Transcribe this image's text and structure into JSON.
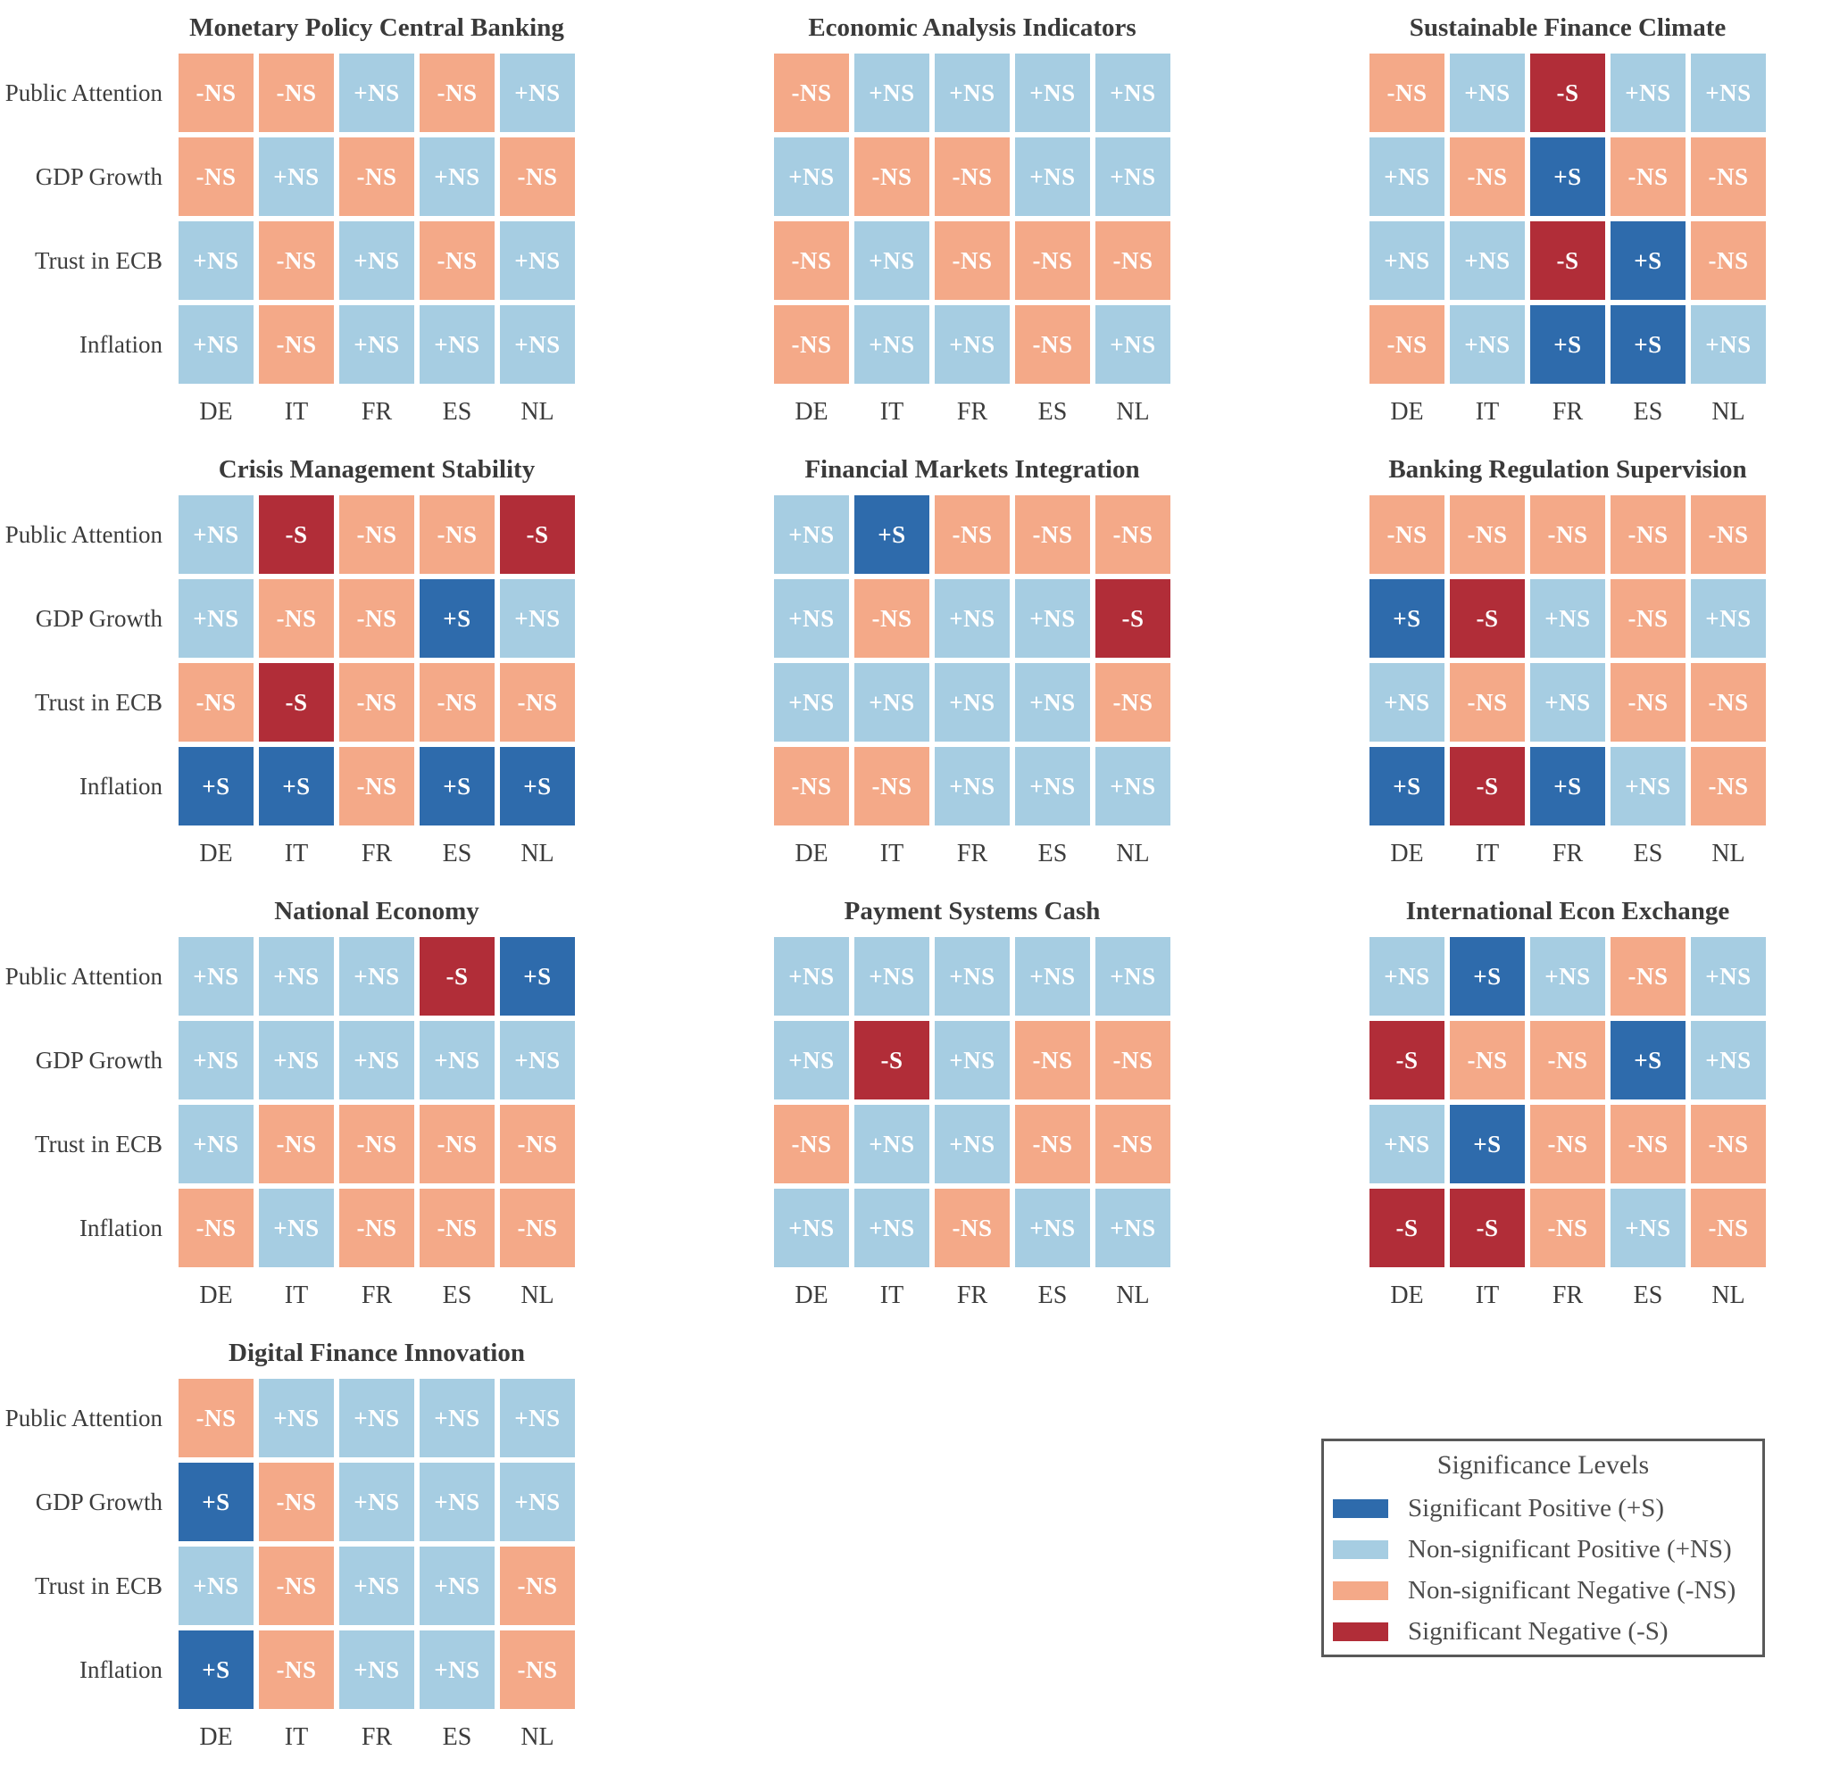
{
  "colors": {
    "sig_pos": "#2E6BAC",
    "nonsig_pos": "#A6CDE2",
    "nonsig_neg": "#F4A988",
    "sig_neg": "#B12D38",
    "label_text": "#3C3C3C",
    "cell_text": "#FFFFFF",
    "legend_border": "#595959"
  },
  "legend": {
    "title": "Significance Levels",
    "items": [
      {
        "label": "Significant Positive (+S)",
        "code": "+S",
        "color_key": "sig_pos"
      },
      {
        "label": "Non-significant Positive (+NS)",
        "code": "+NS",
        "color_key": "nonsig_pos"
      },
      {
        "label": "Non-significant Negative (-NS)",
        "code": "-NS",
        "color_key": "nonsig_neg"
      },
      {
        "label": "Significant Negative (-S)",
        "code": "-S",
        "color_key": "sig_neg"
      }
    ]
  },
  "chart_data": {
    "type": "heatmap",
    "rows": [
      "Public Attention",
      "GDP Growth",
      "Trust in ECB",
      "Inflation"
    ],
    "columns": [
      "DE",
      "IT",
      "FR",
      "ES",
      "NL"
    ],
    "value_meaning": {
      "+S": "Significant Positive",
      "+NS": "Non-significant Positive",
      "-NS": "Non-significant Negative",
      "-S": "Significant Negative"
    },
    "panels": [
      {
        "title": "Monetary Policy Central Banking",
        "values": [
          [
            "-NS",
            "-NS",
            "+NS",
            "-NS",
            "+NS"
          ],
          [
            "-NS",
            "+NS",
            "-NS",
            "+NS",
            "-NS"
          ],
          [
            "+NS",
            "-NS",
            "+NS",
            "-NS",
            "+NS"
          ],
          [
            "+NS",
            "-NS",
            "+NS",
            "+NS",
            "+NS"
          ]
        ]
      },
      {
        "title": "Economic Analysis Indicators",
        "values": [
          [
            "-NS",
            "+NS",
            "+NS",
            "+NS",
            "+NS"
          ],
          [
            "+NS",
            "-NS",
            "-NS",
            "+NS",
            "+NS"
          ],
          [
            "-NS",
            "+NS",
            "-NS",
            "-NS",
            "-NS"
          ],
          [
            "-NS",
            "+NS",
            "+NS",
            "-NS",
            "+NS"
          ]
        ]
      },
      {
        "title": "Sustainable Finance Climate",
        "values": [
          [
            "-NS",
            "+NS",
            "-S",
            "+NS",
            "+NS"
          ],
          [
            "+NS",
            "-NS",
            "+S",
            "-NS",
            "-NS"
          ],
          [
            "+NS",
            "+NS",
            "-S",
            "+S",
            "-NS"
          ],
          [
            "-NS",
            "+NS",
            "+S",
            "+S",
            "+NS"
          ]
        ]
      },
      {
        "title": "Crisis Management Stability",
        "values": [
          [
            "+NS",
            "-S",
            "-NS",
            "-NS",
            "-S"
          ],
          [
            "+NS",
            "-NS",
            "-NS",
            "+S",
            "+NS"
          ],
          [
            "-NS",
            "-S",
            "-NS",
            "-NS",
            "-NS"
          ],
          [
            "+S",
            "+S",
            "-NS",
            "+S",
            "+S"
          ]
        ]
      },
      {
        "title": "Financial Markets Integration",
        "values": [
          [
            "+NS",
            "+S",
            "-NS",
            "-NS",
            "-NS"
          ],
          [
            "+NS",
            "-NS",
            "+NS",
            "+NS",
            "-S"
          ],
          [
            "+NS",
            "+NS",
            "+NS",
            "+NS",
            "-NS"
          ],
          [
            "-NS",
            "-NS",
            "+NS",
            "+NS",
            "+NS"
          ]
        ]
      },
      {
        "title": "Banking Regulation Supervision",
        "values": [
          [
            "-NS",
            "-NS",
            "-NS",
            "-NS",
            "-NS"
          ],
          [
            "+S",
            "-S",
            "+NS",
            "-NS",
            "+NS"
          ],
          [
            "+NS",
            "-NS",
            "+NS",
            "-NS",
            "-NS"
          ],
          [
            "+S",
            "-S",
            "+S",
            "+NS",
            "-NS"
          ]
        ]
      },
      {
        "title": "National Economy",
        "values": [
          [
            "+NS",
            "+NS",
            "+NS",
            "-S",
            "+S"
          ],
          [
            "+NS",
            "+NS",
            "+NS",
            "+NS",
            "+NS"
          ],
          [
            "+NS",
            "-NS",
            "-NS",
            "-NS",
            "-NS"
          ],
          [
            "-NS",
            "+NS",
            "-NS",
            "-NS",
            "-NS"
          ]
        ]
      },
      {
        "title": "Payment Systems Cash",
        "values": [
          [
            "+NS",
            "+NS",
            "+NS",
            "+NS",
            "+NS"
          ],
          [
            "+NS",
            "-S",
            "+NS",
            "-NS",
            "-NS"
          ],
          [
            "-NS",
            "+NS",
            "+NS",
            "-NS",
            "-NS"
          ],
          [
            "+NS",
            "+NS",
            "-NS",
            "+NS",
            "+NS"
          ]
        ]
      },
      {
        "title": "International Econ Exchange",
        "values": [
          [
            "+NS",
            "+S",
            "+NS",
            "-NS",
            "+NS"
          ],
          [
            "-S",
            "-NS",
            "-NS",
            "+S",
            "+NS"
          ],
          [
            "+NS",
            "+S",
            "-NS",
            "-NS",
            "-NS"
          ],
          [
            "-S",
            "-S",
            "-NS",
            "+NS",
            "-NS"
          ]
        ]
      },
      {
        "title": "Digital Finance Innovation",
        "values": [
          [
            "-NS",
            "+NS",
            "+NS",
            "+NS",
            "+NS"
          ],
          [
            "+S",
            "-NS",
            "+NS",
            "+NS",
            "+NS"
          ],
          [
            "+NS",
            "-NS",
            "+NS",
            "+NS",
            "-NS"
          ],
          [
            "+S",
            "-NS",
            "+NS",
            "+NS",
            "-NS"
          ]
        ]
      }
    ]
  }
}
